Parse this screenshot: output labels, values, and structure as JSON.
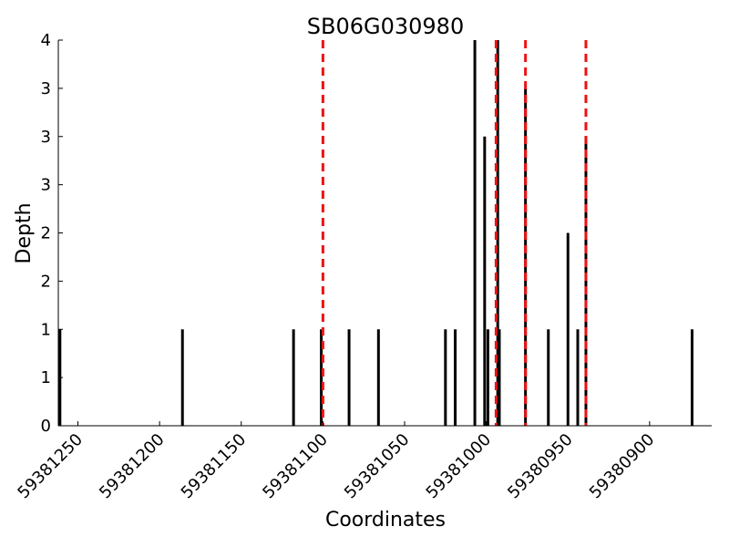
{
  "chart_data": {
    "type": "bar",
    "title": "SB06G030980",
    "xlabel": "Coordinates",
    "ylabel": "Depth",
    "xlim": [
      59381262,
      59380862
    ],
    "ylim": [
      0,
      4
    ],
    "x_reversed": true,
    "y_ticks": [
      {
        "value": 0,
        "label": "0"
      },
      {
        "value": 0.5,
        "label": "1"
      },
      {
        "value": 1,
        "label": "1"
      },
      {
        "value": 1.5,
        "label": "2"
      },
      {
        "value": 2,
        "label": "2"
      },
      {
        "value": 2.5,
        "label": "3"
      },
      {
        "value": 3,
        "label": "3"
      },
      {
        "value": 3.5,
        "label": "3"
      },
      {
        "value": 4,
        "label": "4"
      }
    ],
    "x_ticks": [
      {
        "value": 59381250,
        "label": "59381250"
      },
      {
        "value": 59381200,
        "label": "59381200"
      },
      {
        "value": 59381150,
        "label": "59381150"
      },
      {
        "value": 59381100,
        "label": "59381100"
      },
      {
        "value": 59381050,
        "label": "59381050"
      },
      {
        "value": 59381000,
        "label": "59381000"
      },
      {
        "value": 59380950,
        "label": "59380950"
      },
      {
        "value": 59380900,
        "label": "59380900"
      }
    ],
    "bar_color": "#000000",
    "bars": [
      {
        "x": 59381261,
        "depth": 1
      },
      {
        "x": 59381186,
        "depth": 1
      },
      {
        "x": 59381118,
        "depth": 1
      },
      {
        "x": 59381101,
        "depth": 1
      },
      {
        "x": 59381084,
        "depth": 1
      },
      {
        "x": 59381066,
        "depth": 1
      },
      {
        "x": 59381025,
        "depth": 1
      },
      {
        "x": 59381019,
        "depth": 1
      },
      {
        "x": 59381007,
        "depth": 4
      },
      {
        "x": 59381001,
        "depth": 3
      },
      {
        "x": 59380999,
        "depth": 1
      },
      {
        "x": 59380993,
        "depth": 4
      },
      {
        "x": 59380992,
        "depth": 1
      },
      {
        "x": 59380976,
        "depth": 3.5
      },
      {
        "x": 59380962,
        "depth": 1
      },
      {
        "x": 59380950,
        "depth": 2
      },
      {
        "x": 59380944,
        "depth": 1
      },
      {
        "x": 59380939,
        "depth": 3
      },
      {
        "x": 59380874,
        "depth": 1
      }
    ],
    "marker_color": "#ee1111",
    "markers": [
      59381100,
      59380994,
      59380976,
      59380939
    ]
  }
}
